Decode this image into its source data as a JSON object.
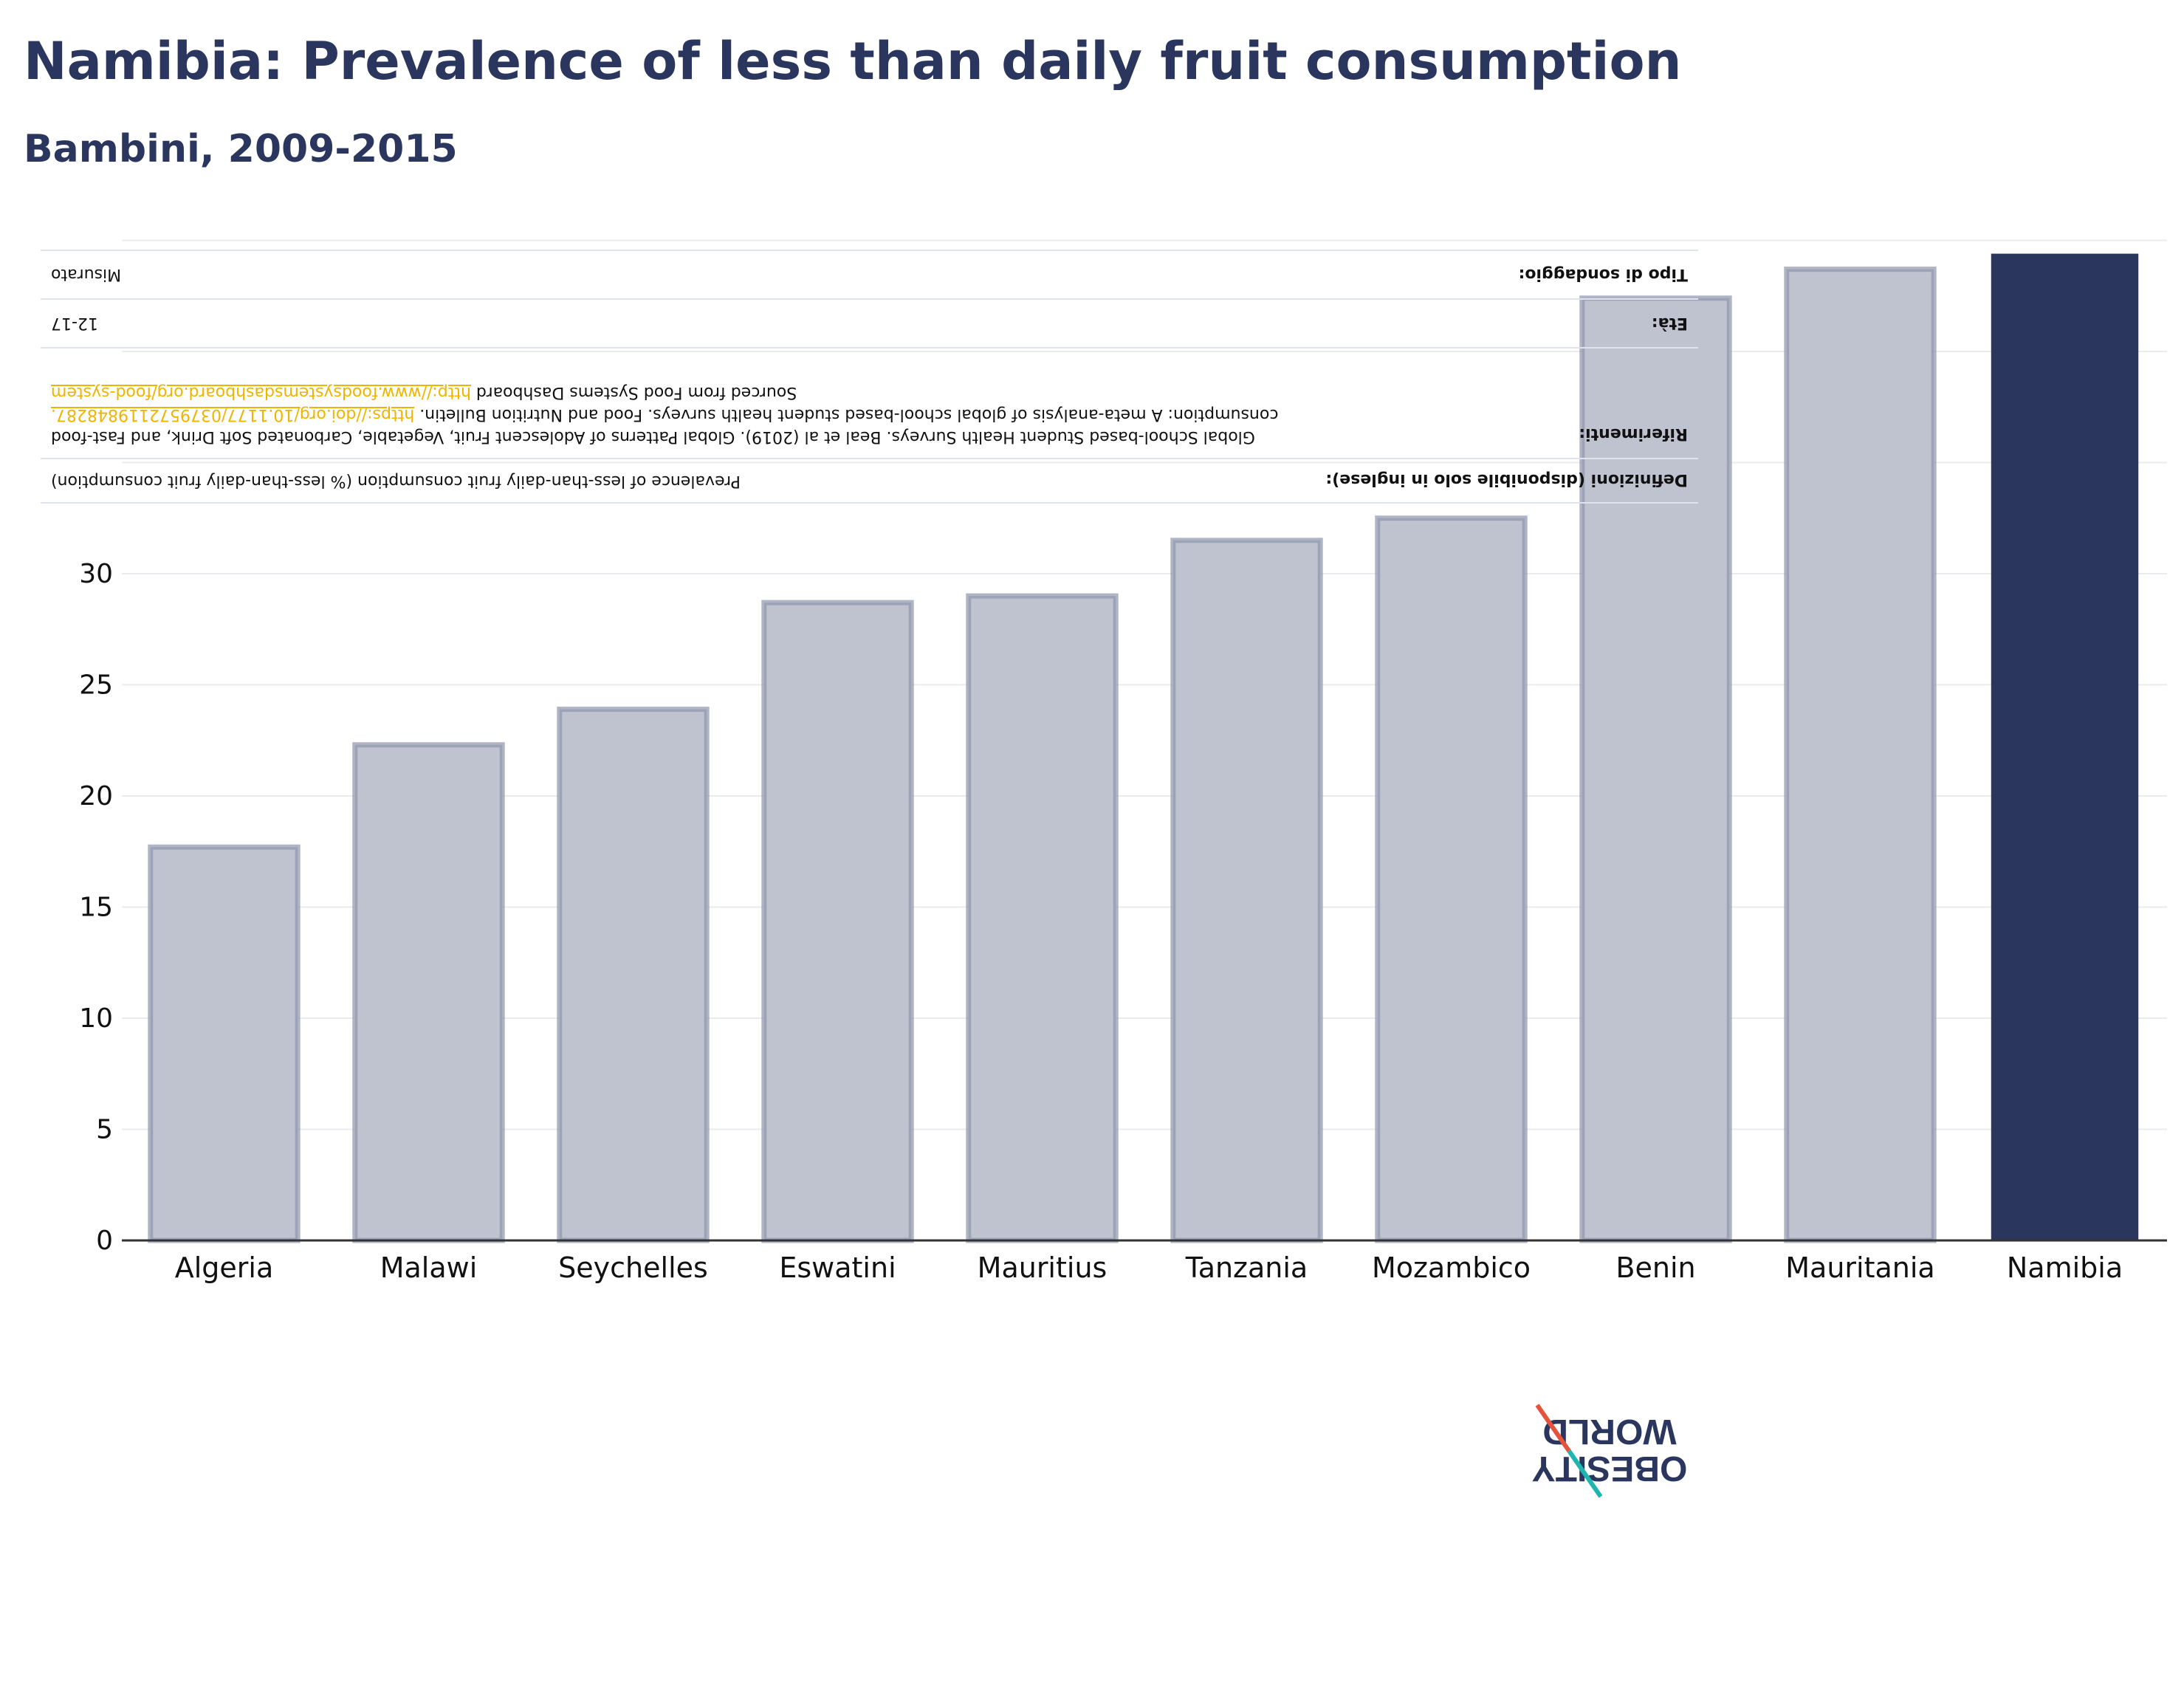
{
  "header": {
    "title": "Namibia: Prevalence of less than daily fruit consumption",
    "subtitle": "Bambini, 2009-2015"
  },
  "definitions": {
    "definitions_key": "Definizioni (disponibile solo in inglese):",
    "definitions_value": "Prevalence of less-than-daily fruit consumption (% less-than-daily fruit consumption)",
    "references_key": "Riferimenti:",
    "references_value": "Global School-based Student Health Surveys. Beal et al (2019). Global Patterns of Adolescent Fruit, Vegetable, Carbonated Soft Drink, and Fast-food consumption: A meta-analysis of global school-based student health surveys. Food and Nutrition Bulletin.",
    "references_link1": "https://doi.org/10.1177/0379572119848287.",
    "references_mid": " Sourced from Food Systems Dashboard ",
    "references_link2": "http://www.foodsystemsdashboard.org/food-system",
    "age_key": "Età:",
    "age_value": "12-17",
    "survey_key": "Tipo di sondaggio:",
    "survey_value": "Misurato"
  },
  "logo": {
    "line1": "OBESITY",
    "line2": "WORLD"
  },
  "colors": {
    "highlight": "#2b365e",
    "bar_fill": "#bfc3cf",
    "bar_stroke": "#8e95ad",
    "grid": "#e9ebef",
    "axis": "#333333",
    "logo_red": "#e5533d",
    "logo_teal": "#1fb6b0"
  },
  "chart_data": {
    "type": "bar",
    "title": "Namibia: Prevalence of less than daily fruit consumption",
    "subtitle": "Bambini, 2009-2015",
    "xlabel": "",
    "ylabel": "",
    "categories": [
      "Algeria",
      "Malawi",
      "Seychelles",
      "Eswatini",
      "Mauritius",
      "Tanzania",
      "Mozambico",
      "Benin",
      "Mauritania",
      "Namibia"
    ],
    "values": [
      17.7,
      22.3,
      23.9,
      28.7,
      29.0,
      31.5,
      32.5,
      42.4,
      43.7,
      44.4
    ],
    "highlight": "Namibia",
    "yticks": [
      0,
      5,
      10,
      15,
      20,
      25,
      30
    ],
    "ylim": [
      0,
      46
    ],
    "grid": true,
    "legend": "none"
  }
}
